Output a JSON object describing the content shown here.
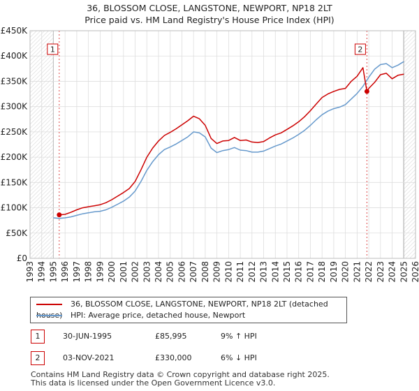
{
  "title": {
    "line1": "36, BLOSSOM CLOSE, LANGSTONE, NEWPORT, NP18 2LT",
    "line2": "Price paid vs. HM Land Registry's House Price Index (HPI)"
  },
  "chart_data": {
    "type": "line",
    "title": "36, BLOSSOM CLOSE, LANGSTONE, NEWPORT, NP18 2LT — Price paid vs. HM Land Registry's House Price Index (HPI)",
    "xlabel": "",
    "ylabel": "",
    "xlim": [
      1993,
      2026
    ],
    "ylim": [
      0,
      450000
    ],
    "grid": true,
    "x_ticks": [
      1993,
      1994,
      1995,
      1996,
      1997,
      1998,
      1999,
      2000,
      2001,
      2002,
      2003,
      2004,
      2005,
      2006,
      2007,
      2008,
      2009,
      2010,
      2011,
      2012,
      2013,
      2014,
      2015,
      2016,
      2017,
      2018,
      2019,
      2020,
      2021,
      2022,
      2023,
      2024,
      2025,
      2026
    ],
    "y_ticks": [
      {
        "value": 0,
        "label": "£0"
      },
      {
        "value": 50000,
        "label": "£50K"
      },
      {
        "value": 100000,
        "label": "£100K"
      },
      {
        "value": 150000,
        "label": "£150K"
      },
      {
        "value": 200000,
        "label": "£200K"
      },
      {
        "value": 250000,
        "label": "£250K"
      },
      {
        "value": 300000,
        "label": "£300K"
      },
      {
        "value": 350000,
        "label": "£350K"
      },
      {
        "value": 400000,
        "label": "£400K"
      },
      {
        "value": 450000,
        "label": "£450K"
      }
    ],
    "hatched_ranges": [
      [
        1993,
        1995.0
      ],
      [
        2025.0,
        2026
      ]
    ],
    "series": [
      {
        "name": "36, BLOSSOM CLOSE, LANGSTONE, NEWPORT, NP18 2LT (detached house)",
        "color": "#cc0000",
        "x": [
          1995.5,
          1996.0,
          1996.5,
          1997.0,
          1997.5,
          1998.0,
          1998.5,
          1999.0,
          1999.5,
          2000.0,
          2000.5,
          2001.0,
          2001.5,
          2002.0,
          2002.5,
          2003.0,
          2003.5,
          2004.0,
          2004.5,
          2005.0,
          2005.5,
          2006.0,
          2006.5,
          2007.0,
          2007.5,
          2008.0,
          2008.5,
          2009.0,
          2009.5,
          2010.0,
          2010.5,
          2011.0,
          2011.5,
          2012.0,
          2012.5,
          2013.0,
          2013.5,
          2014.0,
          2014.5,
          2015.0,
          2015.5,
          2016.0,
          2016.5,
          2017.0,
          2017.5,
          2018.0,
          2018.5,
          2019.0,
          2019.5,
          2020.0,
          2020.5,
          2021.0,
          2021.5,
          2021.84,
          2022.0,
          2022.5,
          2023.0,
          2023.5,
          2024.0,
          2024.5,
          2025.0
        ],
        "y": [
          85995,
          87000,
          91000,
          96000,
          100000,
          102000,
          104000,
          106000,
          110000,
          116000,
          123000,
          130000,
          138000,
          152000,
          175000,
          200000,
          218000,
          232000,
          243000,
          249000,
          256000,
          264000,
          272000,
          281000,
          276000,
          263000,
          237000,
          227000,
          232000,
          233000,
          239000,
          233000,
          234000,
          230000,
          229000,
          231000,
          238000,
          244000,
          248000,
          255000,
          262000,
          270000,
          280000,
          292000,
          305000,
          318000,
          325000,
          330000,
          334000,
          336000,
          350000,
          360000,
          377000,
          330000,
          336000,
          348000,
          363000,
          366000,
          355000,
          362000,
          364000
        ]
      },
      {
        "name": "HPI: Average price, detached house, Newport",
        "color": "#6699cc",
        "x": [
          1995.0,
          1995.5,
          1996.0,
          1996.5,
          1997.0,
          1997.5,
          1998.0,
          1998.5,
          1999.0,
          1999.5,
          2000.0,
          2000.5,
          2001.0,
          2001.5,
          2002.0,
          2002.5,
          2003.0,
          2003.5,
          2004.0,
          2004.5,
          2005.0,
          2005.5,
          2006.0,
          2006.5,
          2007.0,
          2007.5,
          2008.0,
          2008.5,
          2009.0,
          2009.5,
          2010.0,
          2010.5,
          2011.0,
          2011.5,
          2012.0,
          2012.5,
          2013.0,
          2013.5,
          2014.0,
          2014.5,
          2015.0,
          2015.5,
          2016.0,
          2016.5,
          2017.0,
          2017.5,
          2018.0,
          2018.5,
          2019.0,
          2019.5,
          2020.0,
          2020.5,
          2021.0,
          2021.5,
          2022.0,
          2022.5,
          2023.0,
          2023.5,
          2024.0,
          2024.5,
          2025.0
        ],
        "y": [
          80000,
          79000,
          80000,
          82000,
          85000,
          88000,
          90000,
          92000,
          93000,
          96000,
          101000,
          107000,
          113000,
          121000,
          133000,
          152000,
          174000,
          191000,
          205000,
          215000,
          220000,
          226000,
          233000,
          240000,
          250000,
          248000,
          240000,
          218000,
          209000,
          213000,
          215000,
          219000,
          214000,
          213000,
          210000,
          210000,
          212000,
          217000,
          222000,
          226000,
          232000,
          238000,
          245000,
          253000,
          263000,
          274000,
          284000,
          291000,
          296000,
          299000,
          304000,
          315000,
          326000,
          340000,
          358000,
          374000,
          383000,
          385000,
          377000,
          382000,
          389000
        ]
      }
    ],
    "sales": [
      {
        "marker": "1",
        "date": "30-JUN-1995",
        "x": 1995.5,
        "price": 85995,
        "label": "£85,995",
        "hpi_delta": "9% ↑ HPI"
      },
      {
        "marker": "2",
        "date": "03-NOV-2021",
        "x": 2021.84,
        "price": 330000,
        "label": "£330,000",
        "hpi_delta": "6% ↓ HPI"
      }
    ]
  },
  "legend": {
    "property_label": "36, BLOSSOM CLOSE, LANGSTONE, NEWPORT, NP18 2LT (detached house)",
    "hpi_label": "HPI: Average price, detached house, Newport"
  },
  "transactions": [
    {
      "marker": "1",
      "date": "30-JUN-1995",
      "price": "£85,995",
      "change": "9% ↑ HPI"
    },
    {
      "marker": "2",
      "date": "03-NOV-2021",
      "price": "£330,000",
      "change": "6% ↓ HPI"
    }
  ],
  "footer": {
    "line1": "Contains HM Land Registry data © Crown copyright and database right 2025.",
    "line2": "This data is licensed under the Open Government Licence v3.0."
  },
  "colors": {
    "property": "#cc0000",
    "hpi": "#6699cc",
    "grid": "#dddddd",
    "marker_border": "#cc0000"
  }
}
